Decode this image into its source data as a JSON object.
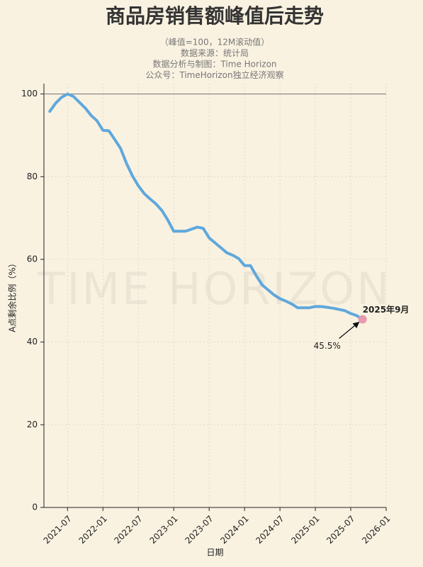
{
  "chart_data": {
    "type": "line",
    "title": "商品房销售额峰值后走势",
    "subtitle": [
      "（峰值=100，12M滚动值）",
      "数据来源：统计局",
      "数据分析与制图：Time Horizon",
      "公众号：TimeHorizon独立经济观察"
    ],
    "watermark": "TIME HORIZON",
    "x_label": "日期",
    "y_label": "A点剩余比例（%）",
    "x": [
      "2021-04",
      "2021-05",
      "2021-06",
      "2021-07",
      "2021-08",
      "2021-09",
      "2021-10",
      "2021-11",
      "2021-12",
      "2022-01",
      "2022-02",
      "2022-03",
      "2022-04",
      "2022-05",
      "2022-06",
      "2022-07",
      "2022-08",
      "2022-09",
      "2022-10",
      "2022-11",
      "2022-12",
      "2023-01",
      "2023-02",
      "2023-03",
      "2023-04",
      "2023-05",
      "2023-06",
      "2023-07",
      "2023-08",
      "2023-09",
      "2023-10",
      "2023-11",
      "2023-12",
      "2024-01",
      "2024-02",
      "2024-03",
      "2024-04",
      "2024-05",
      "2024-06",
      "2024-07",
      "2024-08",
      "2024-09",
      "2024-10",
      "2024-11",
      "2024-12",
      "2025-01",
      "2025-02",
      "2025-03",
      "2025-04",
      "2025-05",
      "2025-06",
      "2025-07",
      "2025-08",
      "2025-09"
    ],
    "series": [
      {
        "name": "商品房销售额",
        "color": "#5fa8dc",
        "values": [
          95.8,
          97.8,
          99.2,
          100,
          99.4,
          98.0,
          96.6,
          94.8,
          93.5,
          91.2,
          91.1,
          89.0,
          86.8,
          83.2,
          80.2,
          77.8,
          75.9,
          74.6,
          73.4,
          71.8,
          69.5,
          66.8,
          66.8,
          66.8,
          67.3,
          67.8,
          67.5,
          65.2,
          64.0,
          62.8,
          61.6,
          61.0,
          60.2,
          58.5,
          58.5,
          56.0,
          53.8,
          52.6,
          51.4,
          50.5,
          49.9,
          49.2,
          48.3,
          48.3,
          48.3,
          48.6,
          48.6,
          48.4,
          48.2,
          47.9,
          47.6,
          46.9,
          46.4,
          45.5
        ]
      }
    ],
    "highlight": {
      "x": "2025-09",
      "value": 45.5,
      "label": "2025年9月",
      "value_label": "45.5%",
      "color": "#e899b0"
    },
    "hline": {
      "value": 100,
      "color": "#808080"
    },
    "xlim": [
      "2021-03",
      "2026-01"
    ],
    "xticks": [
      "2021-07",
      "2022-01",
      "2022-07",
      "2023-01",
      "2023-07",
      "2024-01",
      "2024-07",
      "2025-01",
      "2025-07",
      "2026-01"
    ],
    "ylim": [
      0,
      102.5
    ],
    "yticks": [
      0,
      20,
      40,
      60,
      80,
      100
    ],
    "grid": true
  }
}
